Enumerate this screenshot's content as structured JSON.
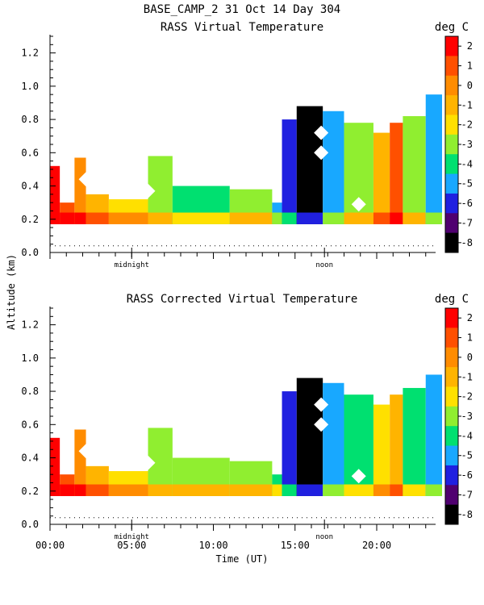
{
  "header": {
    "title": "BASE_CAMP_2  31 Oct 14 Day 304",
    "ylabel": "Altitude (km)",
    "xlabel": "Time (UT)",
    "units": "deg C",
    "midnight_label": "midnight",
    "noon_label": "noon"
  },
  "chart_data": [
    {
      "type": "heatmap",
      "title": "RASS Virtual Temperature",
      "xlabel": "",
      "ylabel": "Altitude (km)",
      "xlim": [
        0,
        24
      ],
      "ylim": [
        0,
        1.3
      ],
      "y_ticks": [
        "0.0",
        "0.2",
        "0.4",
        "0.6",
        "0.8",
        "1.0",
        "1.2"
      ],
      "x_tick_labels": [],
      "colorbar": {
        "label": "deg C",
        "levels": [
          2,
          1,
          0,
          -1,
          -2,
          -3,
          -4,
          -5,
          -6,
          -7,
          -8
        ],
        "tick_labels": [
          "2",
          "1",
          "0",
          "-1",
          "-2",
          "-3",
          "-4",
          "-5",
          "-6",
          "-7",
          "-8"
        ],
        "colors": [
          "#ff0000",
          "#ff5000",
          "#ff8c00",
          "#ffb400",
          "#ffe000",
          "#90ee30",
          "#00e070",
          "#18a8ff",
          "#2020e0",
          "#500070",
          "#000000"
        ]
      },
      "reference_line_altitude_km": 0.04,
      "regions": [
        {
          "start_hour": 0.0,
          "end_hour": 0.6,
          "top_km": 0.52,
          "value": 2
        },
        {
          "start_hour": 0.6,
          "end_hour": 1.5,
          "top_km": 0.3,
          "value": 1
        },
        {
          "start_hour": 1.5,
          "end_hour": 2.2,
          "top_km": 0.57,
          "value": 0
        },
        {
          "start_hour": 2.2,
          "end_hour": 3.6,
          "top_km": 0.35,
          "value": -1
        },
        {
          "start_hour": 3.6,
          "end_hour": 6.0,
          "top_km": 0.32,
          "value": -2
        },
        {
          "start_hour": 6.0,
          "end_hour": 7.5,
          "top_km": 0.58,
          "value": -3
        },
        {
          "start_hour": 7.5,
          "end_hour": 11.0,
          "top_km": 0.4,
          "value": -4
        },
        {
          "start_hour": 11.0,
          "end_hour": 13.6,
          "top_km": 0.38,
          "value": -3
        },
        {
          "start_hour": 13.6,
          "end_hour": 14.2,
          "top_km": 0.3,
          "value": -5
        },
        {
          "start_hour": 14.2,
          "end_hour": 15.1,
          "top_km": 0.8,
          "value": -6
        },
        {
          "start_hour": 15.1,
          "end_hour": 16.7,
          "top_km": 0.88,
          "value": -8
        },
        {
          "start_hour": 16.7,
          "end_hour": 18.0,
          "top_km": 0.85,
          "value": -5
        },
        {
          "start_hour": 18.0,
          "end_hour": 19.8,
          "top_km": 0.78,
          "value": -3
        },
        {
          "start_hour": 19.8,
          "end_hour": 20.8,
          "top_km": 0.72,
          "value": -1
        },
        {
          "start_hour": 20.8,
          "end_hour": 21.6,
          "top_km": 0.78,
          "value": 1
        },
        {
          "start_hour": 21.6,
          "end_hour": 23.0,
          "top_km": 0.82,
          "value": -3
        },
        {
          "start_hour": 23.0,
          "end_hour": 24.0,
          "top_km": 0.95,
          "value": -5
        }
      ]
    },
    {
      "type": "heatmap",
      "title": "RASS Corrected Virtual Temperature",
      "xlabel": "Time (UT)",
      "ylabel": "Altitude (km)",
      "xlim": [
        0,
        24
      ],
      "ylim": [
        0,
        1.3
      ],
      "y_ticks": [
        "0.0",
        "0.2",
        "0.4",
        "0.6",
        "0.8",
        "1.0",
        "1.2"
      ],
      "x_tick_labels": [
        "00:00",
        "05:00",
        "10:00",
        "15:00",
        "20:00"
      ],
      "colorbar": {
        "label": "deg C",
        "levels": [
          2,
          1,
          0,
          -1,
          -2,
          -3,
          -4,
          -5,
          -6,
          -7,
          -8
        ],
        "tick_labels": [
          "2",
          "1",
          "0",
          "-1",
          "-2",
          "-3",
          "-4",
          "-5",
          "-6",
          "-7",
          "-8"
        ],
        "colors": [
          "#ff0000",
          "#ff5000",
          "#ff8c00",
          "#ffb400",
          "#ffe000",
          "#90ee30",
          "#00e070",
          "#18a8ff",
          "#2020e0",
          "#500070",
          "#000000"
        ]
      },
      "reference_line_altitude_km": 0.04,
      "regions": [
        {
          "start_hour": 0.0,
          "end_hour": 0.6,
          "top_km": 0.52,
          "value": 2
        },
        {
          "start_hour": 0.6,
          "end_hour": 1.5,
          "top_km": 0.3,
          "value": 1
        },
        {
          "start_hour": 1.5,
          "end_hour": 2.2,
          "top_km": 0.57,
          "value": 0
        },
        {
          "start_hour": 2.2,
          "end_hour": 3.6,
          "top_km": 0.35,
          "value": -1
        },
        {
          "start_hour": 3.6,
          "end_hour": 6.0,
          "top_km": 0.32,
          "value": -2
        },
        {
          "start_hour": 6.0,
          "end_hour": 7.5,
          "top_km": 0.58,
          "value": -3
        },
        {
          "start_hour": 7.5,
          "end_hour": 11.0,
          "top_km": 0.4,
          "value": -3
        },
        {
          "start_hour": 11.0,
          "end_hour": 13.6,
          "top_km": 0.38,
          "value": -3
        },
        {
          "start_hour": 13.6,
          "end_hour": 14.2,
          "top_km": 0.3,
          "value": -4
        },
        {
          "start_hour": 14.2,
          "end_hour": 15.1,
          "top_km": 0.8,
          "value": -6
        },
        {
          "start_hour": 15.1,
          "end_hour": 16.7,
          "top_km": 0.88,
          "value": -8
        },
        {
          "start_hour": 16.7,
          "end_hour": 18.0,
          "top_km": 0.85,
          "value": -5
        },
        {
          "start_hour": 18.0,
          "end_hour": 19.8,
          "top_km": 0.78,
          "value": -4
        },
        {
          "start_hour": 19.8,
          "end_hour": 20.8,
          "top_km": 0.72,
          "value": -2
        },
        {
          "start_hour": 20.8,
          "end_hour": 21.6,
          "top_km": 0.78,
          "value": -1
        },
        {
          "start_hour": 21.6,
          "end_hour": 23.0,
          "top_km": 0.82,
          "value": -4
        },
        {
          "start_hour": 23.0,
          "end_hour": 24.0,
          "top_km": 0.9,
          "value": -5
        }
      ]
    }
  ]
}
